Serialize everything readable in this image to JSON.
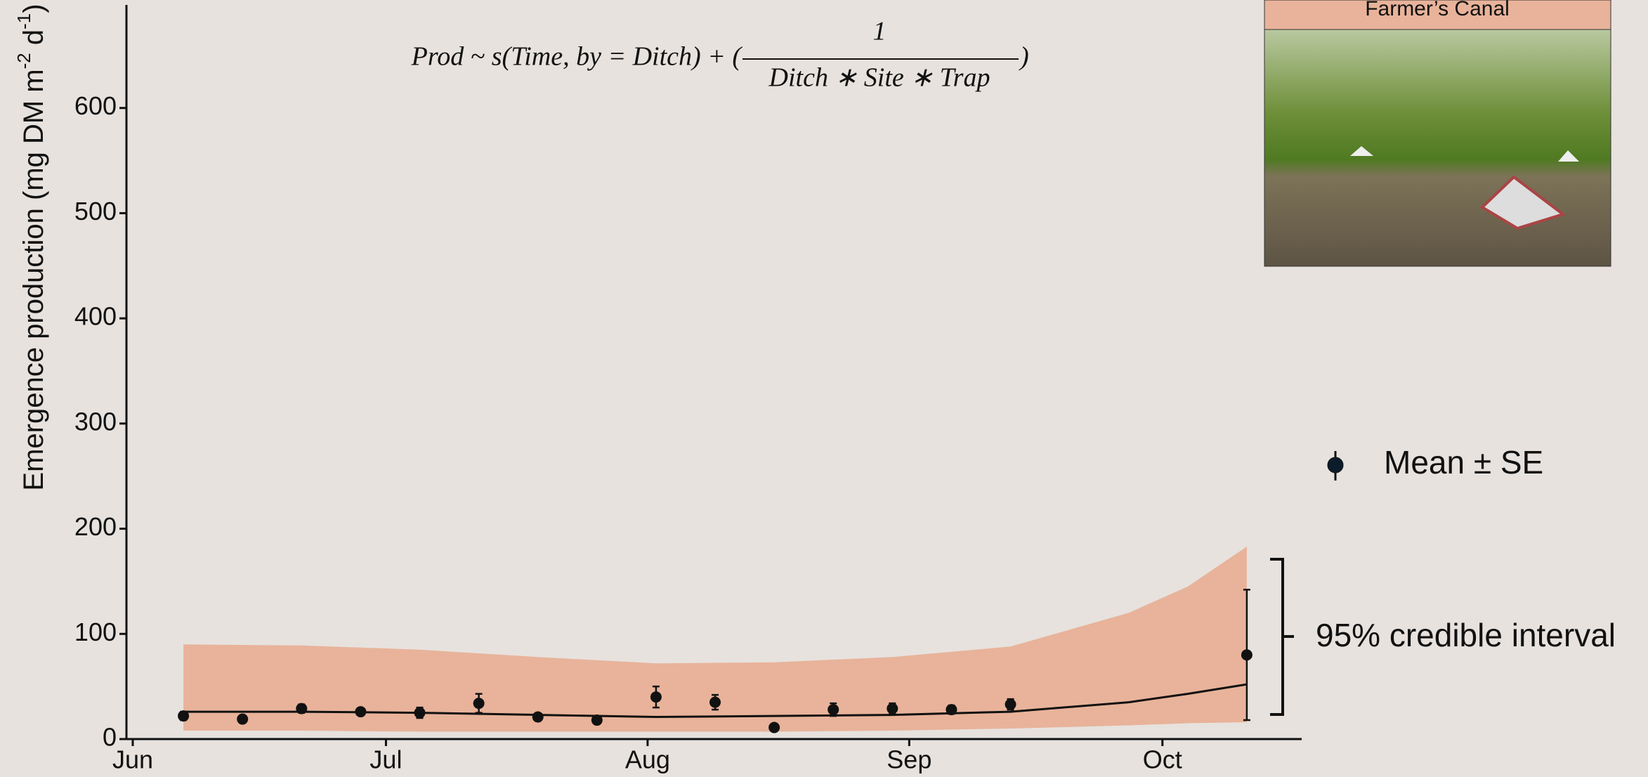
{
  "chart_data": {
    "type": "line",
    "ylabel": {
      "text": "Emergence production (mg DM m",
      "sup1": "-2",
      "mid": " d",
      "sup2": "-1",
      "end": ")"
    },
    "formula": {
      "left": "Prod ~ s(Time, by = Ditch) + (",
      "numerator": "1",
      "denominator": "Ditch ∗ Site ∗ Trap",
      "right": ")"
    },
    "photo_label": "Farmer’s Canal",
    "xlim": [
      -0.75,
      138.5
    ],
    "xticks": [
      {
        "value": 0,
        "label": "Jun"
      },
      {
        "value": 30,
        "label": "Jul"
      },
      {
        "value": 61,
        "label": "Aug"
      },
      {
        "value": 92,
        "label": "Sep"
      },
      {
        "value": 122,
        "label": "Oct"
      }
    ],
    "ylim": [
      0,
      698
    ],
    "yticks": [
      0,
      100,
      200,
      300,
      400,
      500,
      600
    ],
    "points": {
      "name": "Mean ± SE",
      "color": "#111111",
      "x": [
        6,
        13,
        20,
        27,
        34,
        41,
        48,
        55,
        62,
        69,
        76,
        83,
        90,
        97,
        104,
        132
      ],
      "values": [
        22,
        19,
        29,
        26,
        25,
        34,
        21,
        18,
        40,
        35,
        11,
        28,
        29,
        28,
        33,
        80
      ],
      "errors": [
        4,
        3,
        4,
        3,
        5,
        9,
        2,
        1,
        10,
        7,
        0,
        6,
        5,
        4,
        5,
        62
      ]
    },
    "fit": {
      "color": "#111111",
      "x": [
        6,
        20,
        34,
        48,
        62,
        76,
        90,
        104,
        118,
        125,
        132
      ],
      "values": [
        26,
        26,
        25,
        23,
        21,
        22,
        23,
        26,
        35,
        43,
        52
      ]
    },
    "band": {
      "name": "95% credible interval",
      "color": "#e8b39a",
      "x": [
        6,
        20,
        34,
        48,
        62,
        76,
        90,
        104,
        118,
        125,
        132
      ],
      "upper": [
        90,
        89,
        85,
        78,
        72,
        73,
        78,
        88,
        120,
        145,
        183
      ],
      "lower": [
        8,
        8,
        7,
        7,
        7,
        7,
        8,
        10,
        13,
        15,
        16
      ]
    }
  }
}
